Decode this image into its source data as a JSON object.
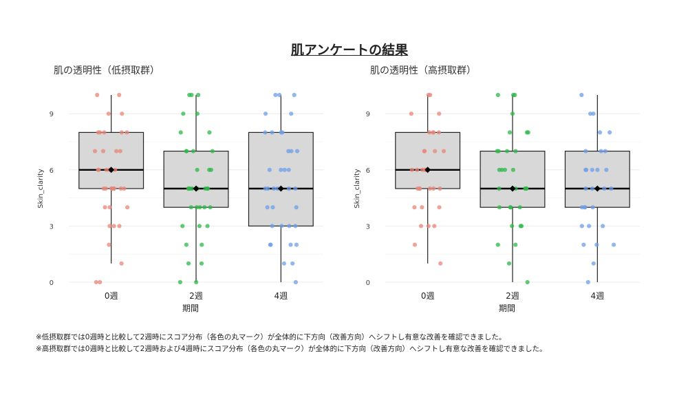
{
  "page": {
    "title": "肌アンケートの結果"
  },
  "footnotes": [
    "※低摂取群では0週時と比較して2週時にスコア分布（各色の丸マーク）が全体的に下方向（改善方向）へシフトし有意な改善を確認できました。",
    "※高摂取群では0週時と比較して2週時および4週時にスコア分布（各色の丸マーク）が全体的に下方向（改善方向）へシフトし有意な改善を確認できました。"
  ],
  "chart_data": [
    {
      "type": "box",
      "title": "肌の透明性（低摂取群）",
      "xlabel": "期間",
      "ylabel": "Skin_clarity",
      "categories": [
        "0週",
        "2週",
        "4週"
      ],
      "yticks": [
        0,
        3,
        6,
        9
      ],
      "ylim": [
        0,
        10
      ],
      "colors": [
        "#e8857a",
        "#2db84a",
        "#6e9ee8"
      ],
      "boxes": [
        {
          "min": 1,
          "q1": 5,
          "median": 6,
          "q3": 8,
          "max": 10,
          "mean": 6
        },
        {
          "min": 0,
          "q1": 4,
          "median": 5,
          "q3": 7,
          "max": 10,
          "mean": 5
        },
        {
          "min": 0,
          "q1": 3,
          "median": 5,
          "q3": 8,
          "max": 10,
          "mean": 5
        }
      ],
      "points": [
        [
          10,
          10,
          9,
          9,
          8,
          8,
          8,
          8,
          8,
          7,
          7,
          7,
          7,
          6,
          6,
          6,
          6,
          6,
          6,
          6,
          5,
          5,
          5,
          5,
          5,
          5,
          5,
          5,
          4,
          4,
          4,
          3,
          3,
          3,
          2,
          1,
          0,
          0
        ],
        [
          10,
          10,
          10,
          9,
          9,
          8,
          8,
          7,
          7,
          7,
          7,
          6,
          6,
          6,
          5,
          5,
          5,
          5,
          5,
          5,
          5,
          5,
          4,
          4,
          4,
          4,
          4,
          3,
          3,
          3,
          2,
          2,
          1,
          1,
          0,
          0
        ],
        [
          10,
          10,
          10,
          9,
          9,
          8,
          8,
          8,
          8,
          7,
          7,
          7,
          6,
          6,
          6,
          6,
          5,
          5,
          5,
          5,
          5,
          5,
          4,
          4,
          4,
          3,
          3,
          3,
          3,
          2,
          2,
          2,
          2,
          1,
          1,
          0
        ]
      ],
      "grid": true,
      "legend": "none"
    },
    {
      "type": "box",
      "title": "肌の透明性（高摂取群）",
      "xlabel": "期間",
      "ylabel": "Skin_clarity",
      "categories": [
        "0週",
        "2週",
        "4週"
      ],
      "yticks": [
        0,
        3,
        6,
        9
      ],
      "ylim": [
        0,
        10
      ],
      "colors": [
        "#e8857a",
        "#2db84a",
        "#6e9ee8"
      ],
      "boxes": [
        {
          "min": 1,
          "q1": 5,
          "median": 6,
          "q3": 8,
          "max": 10,
          "mean": 6
        },
        {
          "min": 0,
          "q1": 4,
          "median": 5,
          "q3": 7,
          "max": 10,
          "mean": 5
        },
        {
          "min": 0,
          "q1": 4,
          "median": 5,
          "q3": 7,
          "max": 10,
          "mean": 5
        }
      ],
      "points": [
        [
          10,
          10,
          9,
          9,
          8,
          8,
          8,
          8,
          7,
          7,
          7,
          7,
          6,
          6,
          6,
          6,
          6,
          6,
          5,
          5,
          5,
          5,
          5,
          5,
          4,
          4,
          4,
          3,
          3,
          3,
          2,
          1
        ],
        [
          10,
          10,
          10,
          9,
          8,
          8,
          8,
          7,
          7,
          7,
          7,
          6,
          6,
          6,
          6,
          5,
          5,
          5,
          5,
          5,
          4,
          4,
          4,
          4,
          3,
          3,
          3,
          2,
          2,
          1,
          0
        ],
        [
          10,
          9,
          9,
          8,
          8,
          7,
          7,
          7,
          6,
          6,
          6,
          6,
          6,
          5,
          5,
          5,
          5,
          5,
          5,
          4,
          4,
          4,
          4,
          3,
          3,
          3,
          2,
          2,
          2,
          1,
          0
        ]
      ],
      "grid": true,
      "legend": "none"
    }
  ]
}
